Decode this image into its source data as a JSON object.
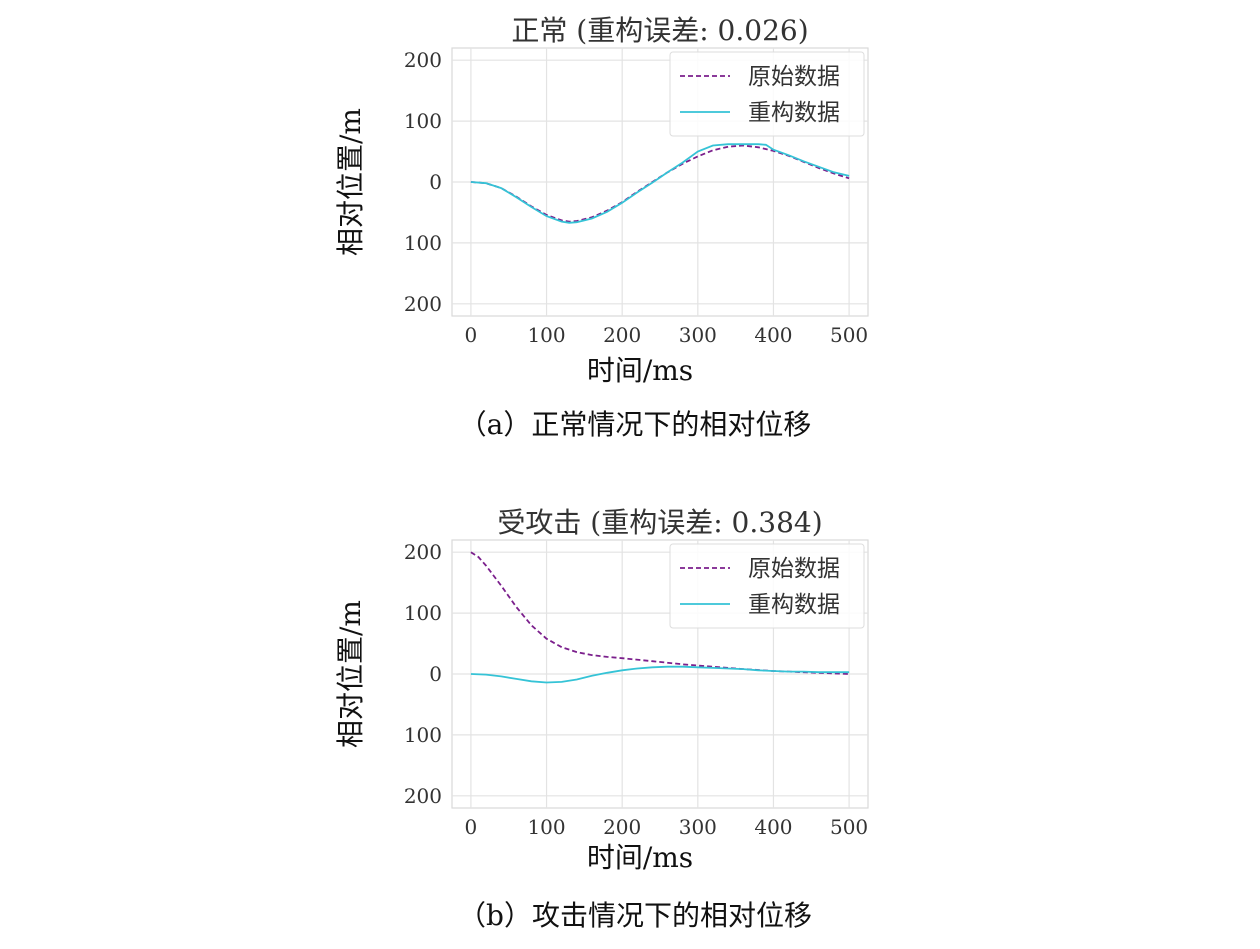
{
  "colors": {
    "original": "#7b1f8c",
    "reconstructed": "#35c3d6"
  },
  "chart_data": [
    {
      "type": "line",
      "title": "正常 (重构误差: 0.026)",
      "xlabel": "时间/ms",
      "ylabel": "相对位置/m",
      "caption": "（a）正常情况下的相对位移",
      "xlim": [
        -25,
        525
      ],
      "ylim": [
        -220,
        220
      ],
      "xticks": [
        "0",
        "100",
        "200",
        "300",
        "400",
        "500"
      ],
      "yticks": [
        "200",
        "100",
        "0",
        "100",
        "200"
      ],
      "grid": true,
      "legend_position": "top-right",
      "series": [
        {
          "name": "原始数据",
          "style": "dashed",
          "x": [
            0,
            20,
            40,
            60,
            80,
            100,
            120,
            130,
            140,
            160,
            180,
            200,
            220,
            240,
            260,
            280,
            300,
            320,
            340,
            360,
            380,
            400,
            420,
            440,
            460,
            480,
            500
          ],
          "y": [
            0,
            -2,
            -10,
            -24,
            -40,
            -54,
            -63,
            -65,
            -64,
            -58,
            -47,
            -33,
            -16,
            0,
            16,
            30,
            42,
            52,
            58,
            60,
            57,
            51,
            43,
            33,
            23,
            14,
            6
          ]
        },
        {
          "name": "重构数据",
          "style": "solid",
          "x": [
            0,
            20,
            40,
            60,
            80,
            100,
            120,
            130,
            140,
            160,
            180,
            200,
            220,
            240,
            260,
            280,
            300,
            320,
            340,
            360,
            380,
            390,
            400,
            420,
            440,
            460,
            480,
            500
          ],
          "y": [
            0,
            -2,
            -10,
            -25,
            -41,
            -56,
            -65,
            -67,
            -66,
            -60,
            -49,
            -34,
            -17,
            -1,
            16,
            32,
            50,
            60,
            62,
            62,
            62,
            61,
            53,
            44,
            34,
            25,
            16,
            10
          ]
        }
      ]
    },
    {
      "type": "line",
      "title": "受攻击 (重构误差: 0.384)",
      "xlabel": "时间/ms",
      "ylabel": "相对位置/m",
      "caption": "（b）攻击情况下的相对位移",
      "xlim": [
        -25,
        525
      ],
      "ylim": [
        -220,
        220
      ],
      "xticks": [
        "0",
        "100",
        "200",
        "300",
        "400",
        "500"
      ],
      "yticks": [
        "200",
        "100",
        "0",
        "100",
        "200"
      ],
      "grid": true,
      "legend_position": "top-right",
      "series": [
        {
          "name": "原始数据",
          "style": "dashed",
          "x": [
            0,
            10,
            20,
            40,
            60,
            80,
            100,
            120,
            140,
            160,
            180,
            200,
            240,
            280,
            320,
            360,
            400,
            440,
            480,
            500
          ],
          "y": [
            200,
            192,
            178,
            145,
            110,
            80,
            58,
            44,
            36,
            31,
            28,
            26,
            21,
            16,
            12,
            8,
            5,
            3,
            1,
            0
          ]
        },
        {
          "name": "重构数据",
          "style": "solid",
          "x": [
            0,
            20,
            40,
            60,
            80,
            100,
            120,
            140,
            160,
            180,
            200,
            220,
            240,
            260,
            280,
            300,
            320,
            340,
            360,
            380,
            400,
            420,
            440,
            460,
            480,
            500
          ],
          "y": [
            0,
            -1,
            -4,
            -8,
            -12,
            -14,
            -13,
            -9,
            -3,
            2,
            6,
            9,
            11,
            12,
            12,
            11,
            10,
            9,
            8,
            6,
            5,
            4,
            4,
            3,
            3,
            3
          ]
        }
      ]
    }
  ]
}
